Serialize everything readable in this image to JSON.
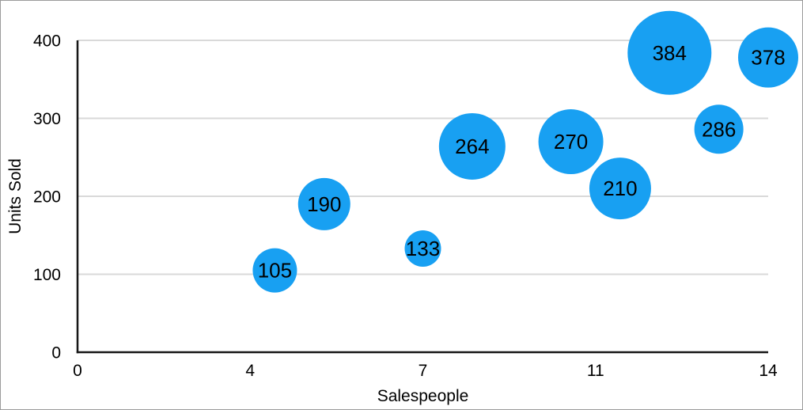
{
  "chart_data": {
    "type": "scatter",
    "subtype": "bubble",
    "title": "",
    "xlabel": "Salespeople",
    "ylabel": "Units Sold",
    "xlim": [
      0,
      14
    ],
    "ylim": [
      0,
      400
    ],
    "grid": "horizontal-only",
    "legend_position": "none",
    "x_ticks": [
      {
        "value": 0,
        "label": "0"
      },
      {
        "value": 3.5,
        "label": "4"
      },
      {
        "value": 7,
        "label": "7"
      },
      {
        "value": 10.5,
        "label": "11"
      },
      {
        "value": 14,
        "label": "14"
      }
    ],
    "y_ticks": [
      {
        "value": 0,
        "label": "0"
      },
      {
        "value": 100,
        "label": "100"
      },
      {
        "value": 200,
        "label": "200"
      },
      {
        "value": 300,
        "label": "300"
      },
      {
        "value": 400,
        "label": "400"
      }
    ],
    "series": [
      {
        "name": "Units Sold",
        "points": [
          {
            "x": 4,
            "y": 105,
            "label": "105",
            "radius_px": 28
          },
          {
            "x": 5,
            "y": 190,
            "label": "190",
            "radius_px": 33
          },
          {
            "x": 7,
            "y": 133,
            "label": "133",
            "radius_px": 23
          },
          {
            "x": 8,
            "y": 264,
            "label": "264",
            "radius_px": 42
          },
          {
            "x": 10,
            "y": 270,
            "label": "270",
            "radius_px": 41
          },
          {
            "x": 11,
            "y": 210,
            "label": "210",
            "radius_px": 39
          },
          {
            "x": 12,
            "y": 384,
            "label": "384",
            "radius_px": 53
          },
          {
            "x": 13,
            "y": 286,
            "label": "286",
            "radius_px": 31
          },
          {
            "x": 14,
            "y": 378,
            "label": "378",
            "radius_px": 38
          }
        ]
      }
    ],
    "colors": {
      "bubble": "#18A0F2",
      "bubble_label": "#000000",
      "axis": "#161616",
      "gridline": "#D9D9D9",
      "background": "#FFFFFF",
      "frame_border": "#9B9B9B"
    }
  }
}
